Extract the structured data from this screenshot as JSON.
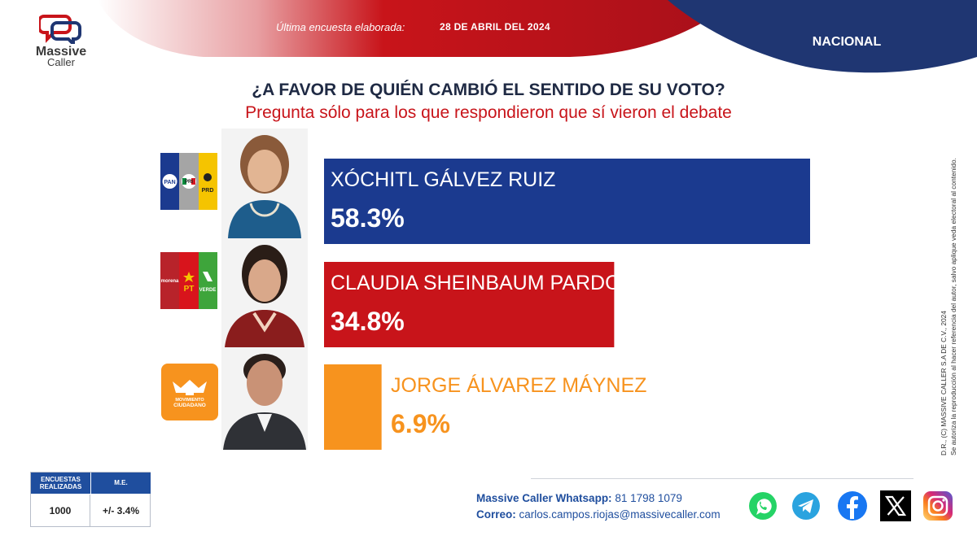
{
  "header": {
    "brand_line1": "Massive",
    "brand_line2": "Caller",
    "update_label": "Última encuesta elaborada:",
    "update_date": "28 DE ABRIL DEL 2024",
    "scope": "NACIONAL"
  },
  "question": "¿A FAVOR DE QUIÉN CAMBIÓ EL SENTIDO DE SU VOTO?",
  "subquestion": "Pregunta sólo para los que respondieron que sí vieron el debate",
  "colors": {
    "navy": "#1b3a8f",
    "red": "#c8141a",
    "orange": "#f7931e",
    "title": "#1f2a44",
    "header_red": "#b5121b",
    "header_navy": "#1f3672"
  },
  "parties": {
    "coalition1": [
      "PAN",
      "PRI",
      "PRD"
    ],
    "coalition2": [
      "morena",
      "PT",
      "VERDE"
    ],
    "mc_line1": "MOVIMIENTO",
    "mc_line2": "CIUDADANO"
  },
  "chart_data": {
    "type": "bar",
    "orientation": "horizontal",
    "categories": [
      "XÓCHITL GÁLVEZ RUIZ",
      "CLAUDIA SHEINBAUM PARDO",
      "JORGE ÁLVAREZ MÁYNEZ"
    ],
    "values": [
      58.3,
      34.8,
      6.9
    ],
    "value_labels": [
      "58.3%",
      "34.8%",
      "6.9%"
    ],
    "bar_colors": [
      "#1b3a8f",
      "#c8141a",
      "#f7931e"
    ],
    "label_colors": [
      "#ffffff",
      "#ffffff",
      "#f7931e"
    ],
    "xlim": [
      0,
      58.3
    ],
    "title": "",
    "xlabel": "",
    "ylabel": ""
  },
  "methodology": {
    "col1_header": "ENCUESTAS REALIZADAS",
    "col2_header": "M.E.",
    "col1_value": "1000",
    "col2_value": "+/- 3.4%"
  },
  "contact": {
    "whatsapp_label": "Massive Caller Whatsapp:",
    "whatsapp_value": "81 1798 1079",
    "email_label": "Correo:",
    "email_value": "carlos.campos.riojas@massivecaller.com"
  },
  "social_icons": [
    "whatsapp-icon",
    "telegram-icon",
    "facebook-icon",
    "x-icon",
    "instagram-icon"
  ],
  "disclaimer": {
    "line1": "D.R., (C) MASSIVE CALLER S.A DE C.V., 2024",
    "line2": "Se autoriza la reproducción al hacer referencia del autor, salvo aplique veda electoral al contenido."
  }
}
